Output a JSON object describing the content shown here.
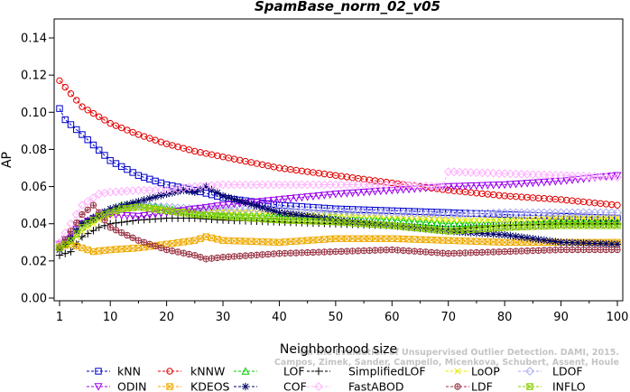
{
  "chart_data": {
    "type": "line",
    "title": "SpamBase_norm_02_v05",
    "xlabel": "Neighborhood size",
    "ylabel": "AP",
    "xlim": [
      1,
      100
    ],
    "ylim": [
      0,
      0.14
    ],
    "xticks": [
      1,
      10,
      20,
      30,
      40,
      50,
      60,
      70,
      80,
      90,
      100
    ],
    "yticks": [
      "0.00",
      "0.02",
      "0.04",
      "0.06",
      "0.08",
      "0.10",
      "0.12",
      "0.14"
    ],
    "grid": false,
    "legend_position": "bottom",
    "watermark": [
      "Campos, Zimek, Sander, Campello, Micenkova, Schubert, Assent, Houle",
      "On the Evaluation of Unsupervised Outlier Detection. DAMI, 2015."
    ],
    "series": [
      {
        "name": "kNN",
        "color": "#0000cc",
        "marker": "square",
        "points": [
          [
            1,
            0.102
          ],
          [
            2,
            0.096
          ],
          [
            5,
            0.088
          ],
          [
            10,
            0.074
          ],
          [
            15,
            0.066
          ],
          [
            20,
            0.061
          ],
          [
            25,
            0.058
          ],
          [
            30,
            0.054
          ],
          [
            35,
            0.052
          ],
          [
            40,
            0.05
          ],
          [
            50,
            0.048
          ],
          [
            60,
            0.047
          ],
          [
            70,
            0.046
          ],
          [
            80,
            0.045
          ],
          [
            90,
            0.044
          ],
          [
            100,
            0.043
          ]
        ]
      },
      {
        "name": "kNNW",
        "color": "#e00000",
        "marker": "circle",
        "points": [
          [
            1,
            0.117
          ],
          [
            3,
            0.11
          ],
          [
            5,
            0.103
          ],
          [
            10,
            0.094
          ],
          [
            15,
            0.088
          ],
          [
            20,
            0.083
          ],
          [
            25,
            0.079
          ],
          [
            30,
            0.076
          ],
          [
            35,
            0.073
          ],
          [
            40,
            0.07
          ],
          [
            50,
            0.066
          ],
          [
            60,
            0.062
          ],
          [
            70,
            0.058
          ],
          [
            80,
            0.055
          ],
          [
            90,
            0.053
          ],
          [
            100,
            0.05
          ]
        ]
      },
      {
        "name": "LOF",
        "color": "#00cc00",
        "marker": "triangle",
        "points": [
          [
            1,
            0.028
          ],
          [
            3,
            0.033
          ],
          [
            5,
            0.04
          ],
          [
            8,
            0.045
          ],
          [
            12,
            0.05
          ],
          [
            15,
            0.051
          ],
          [
            20,
            0.048
          ],
          [
            25,
            0.046
          ],
          [
            30,
            0.045
          ],
          [
            40,
            0.044
          ],
          [
            50,
            0.044
          ],
          [
            60,
            0.042
          ],
          [
            70,
            0.04
          ],
          [
            80,
            0.041
          ],
          [
            90,
            0.041
          ],
          [
            100,
            0.041
          ]
        ]
      },
      {
        "name": "SimplifiedLOF",
        "color": "#000000",
        "marker": "plus",
        "points": [
          [
            1,
            0.023
          ],
          [
            3,
            0.025
          ],
          [
            5,
            0.033
          ],
          [
            8,
            0.038
          ],
          [
            10,
            0.04
          ],
          [
            15,
            0.042
          ],
          [
            20,
            0.043
          ],
          [
            25,
            0.043
          ],
          [
            30,
            0.042
          ],
          [
            40,
            0.041
          ],
          [
            50,
            0.04
          ],
          [
            60,
            0.039
          ],
          [
            70,
            0.037
          ],
          [
            80,
            0.039
          ],
          [
            90,
            0.04
          ],
          [
            100,
            0.04
          ]
        ]
      },
      {
        "name": "LoOP",
        "color": "#e8e800",
        "marker": "x",
        "points": [
          [
            1,
            0.026
          ],
          [
            3,
            0.03
          ],
          [
            5,
            0.036
          ],
          [
            8,
            0.042
          ],
          [
            12,
            0.047
          ],
          [
            15,
            0.049
          ],
          [
            20,
            0.048
          ],
          [
            25,
            0.047
          ],
          [
            30,
            0.047
          ],
          [
            40,
            0.046
          ],
          [
            50,
            0.045
          ],
          [
            60,
            0.044
          ],
          [
            70,
            0.042
          ],
          [
            80,
            0.042
          ],
          [
            90,
            0.043
          ],
          [
            100,
            0.043
          ]
        ]
      },
      {
        "name": "LDOF",
        "color": "#aaaaee",
        "marker": "diamond",
        "points": [
          [
            1,
            0.028
          ],
          [
            3,
            0.033
          ],
          [
            5,
            0.04
          ],
          [
            8,
            0.045
          ],
          [
            12,
            0.049
          ],
          [
            15,
            0.05
          ],
          [
            20,
            0.049
          ],
          [
            25,
            0.048
          ],
          [
            30,
            0.048
          ],
          [
            40,
            0.048
          ],
          [
            50,
            0.047
          ],
          [
            60,
            0.046
          ],
          [
            70,
            0.045
          ],
          [
            80,
            0.046
          ],
          [
            90,
            0.046
          ],
          [
            100,
            0.046
          ]
        ]
      },
      {
        "name": "ODIN",
        "color": "#9900ee",
        "marker": "triangle-down",
        "points": [
          [
            1,
            0.029
          ],
          [
            3,
            0.034
          ],
          [
            5,
            0.04
          ],
          [
            8,
            0.044
          ],
          [
            10,
            0.045
          ],
          [
            15,
            0.044
          ],
          [
            20,
            0.046
          ],
          [
            25,
            0.048
          ],
          [
            30,
            0.05
          ],
          [
            40,
            0.053
          ],
          [
            50,
            0.056
          ],
          [
            60,
            0.058
          ],
          [
            70,
            0.06
          ],
          [
            80,
            0.061
          ],
          [
            90,
            0.063
          ],
          [
            100,
            0.066
          ]
        ]
      },
      {
        "name": "KDEOS",
        "color": "#eeaa00",
        "marker": "square-x",
        "points": [
          [
            1,
            0.028
          ],
          [
            3,
            0.029
          ],
          [
            5,
            0.027
          ],
          [
            7,
            0.025
          ],
          [
            10,
            0.026
          ],
          [
            15,
            0.027
          ],
          [
            20,
            0.029
          ],
          [
            25,
            0.031
          ],
          [
            27,
            0.033
          ],
          [
            30,
            0.031
          ],
          [
            40,
            0.03
          ],
          [
            50,
            0.032
          ],
          [
            60,
            0.032
          ],
          [
            70,
            0.031
          ],
          [
            80,
            0.03
          ],
          [
            90,
            0.03
          ],
          [
            100,
            0.03
          ]
        ]
      },
      {
        "name": "COF",
        "color": "#000066",
        "marker": "star",
        "points": [
          [
            1,
            0.026
          ],
          [
            3,
            0.032
          ],
          [
            5,
            0.04
          ],
          [
            10,
            0.048
          ],
          [
            15,
            0.052
          ],
          [
            20,
            0.056
          ],
          [
            23,
            0.058
          ],
          [
            25,
            0.057
          ],
          [
            27,
            0.06
          ],
          [
            30,
            0.055
          ],
          [
            40,
            0.046
          ],
          [
            50,
            0.042
          ],
          [
            60,
            0.039
          ],
          [
            70,
            0.036
          ],
          [
            80,
            0.034
          ],
          [
            90,
            0.03
          ],
          [
            100,
            0.029
          ]
        ]
      },
      {
        "name": "FastABOD",
        "color": "#ffb0ff",
        "marker": "diamond",
        "points": [
          [
            1,
            0.03
          ],
          [
            3,
            0.04
          ],
          [
            5,
            0.05
          ],
          [
            8,
            0.056
          ],
          [
            10,
            0.057
          ],
          [
            15,
            0.058
          ],
          [
            20,
            0.058
          ],
          [
            25,
            0.06
          ],
          [
            30,
            0.061
          ],
          [
            40,
            0.061
          ],
          [
            50,
            0.061
          ],
          [
            60,
            0.061
          ],
          [
            69,
            0.06
          ],
          [
            70,
            0.068
          ],
          [
            80,
            0.067
          ],
          [
            90,
            0.066
          ],
          [
            100,
            0.065
          ]
        ]
      },
      {
        "name": "LDF",
        "color": "#993344",
        "marker": "circle-plus",
        "points": [
          [
            1,
            0.027
          ],
          [
            3,
            0.036
          ],
          [
            5,
            0.045
          ],
          [
            7,
            0.05
          ],
          [
            10,
            0.038
          ],
          [
            15,
            0.031
          ],
          [
            20,
            0.026
          ],
          [
            25,
            0.023
          ],
          [
            27,
            0.021
          ],
          [
            30,
            0.022
          ],
          [
            40,
            0.024
          ],
          [
            50,
            0.025
          ],
          [
            60,
            0.026
          ],
          [
            70,
            0.024
          ],
          [
            80,
            0.025
          ],
          [
            90,
            0.026
          ],
          [
            100,
            0.026
          ]
        ]
      },
      {
        "name": "INFLO",
        "color": "#88cc00",
        "marker": "square-x",
        "points": [
          [
            1,
            0.027
          ],
          [
            3,
            0.031
          ],
          [
            5,
            0.038
          ],
          [
            8,
            0.044
          ],
          [
            12,
            0.048
          ],
          [
            15,
            0.049
          ],
          [
            20,
            0.047
          ],
          [
            25,
            0.045
          ],
          [
            30,
            0.044
          ],
          [
            40,
            0.042
          ],
          [
            50,
            0.041
          ],
          [
            60,
            0.039
          ],
          [
            70,
            0.036
          ],
          [
            80,
            0.038
          ],
          [
            90,
            0.039
          ],
          [
            100,
            0.039
          ]
        ]
      }
    ],
    "legend_order": [
      "kNN",
      "kNNW",
      "LOF",
      "SimplifiedLOF",
      "LoOP",
      "LDOF",
      "ODIN",
      "KDEOS",
      "COF",
      "FastABOD",
      "LDF",
      "INFLO"
    ]
  }
}
